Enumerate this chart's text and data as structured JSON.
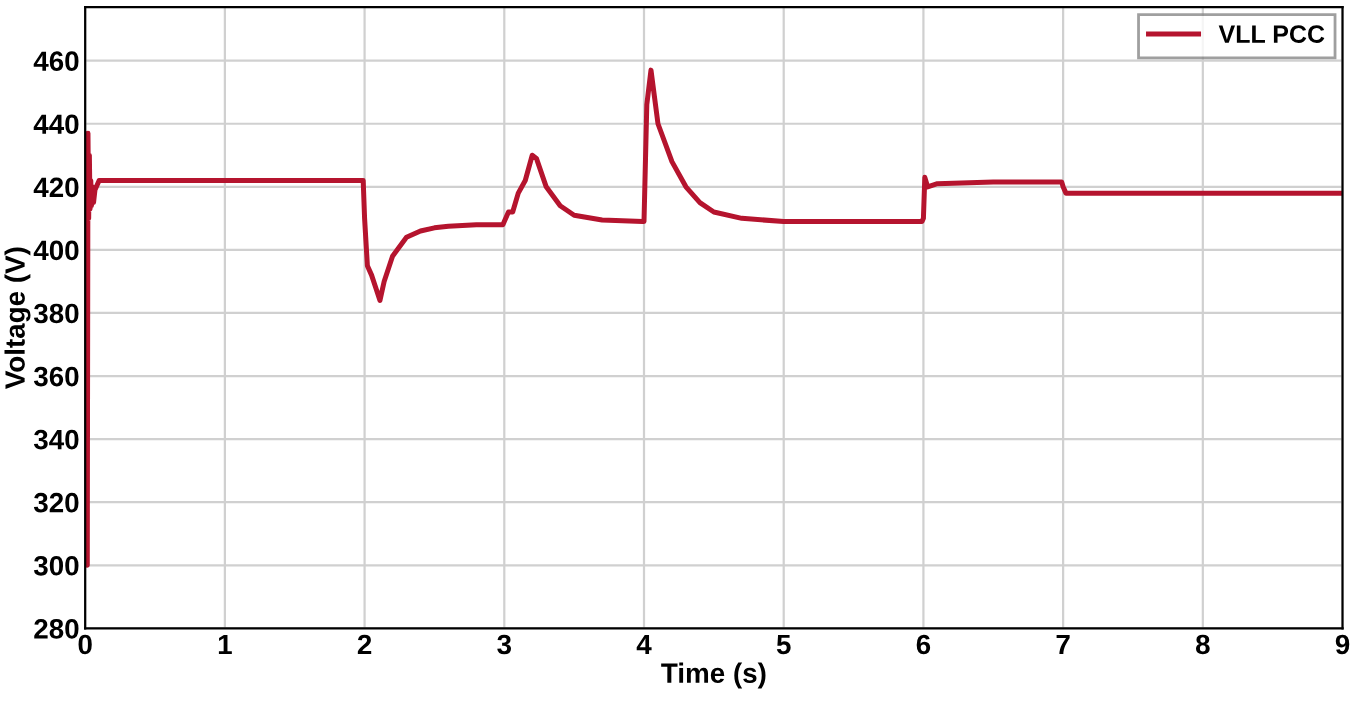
{
  "chart_data": {
    "type": "line",
    "xlabel": "Time (s)",
    "ylabel": "Voltage (V)",
    "xlim": [
      0,
      9
    ],
    "ylim": [
      280,
      477
    ],
    "xticks": [
      0,
      1,
      2,
      3,
      4,
      5,
      6,
      7,
      8,
      9
    ],
    "yticks": [
      280,
      300,
      320,
      340,
      360,
      380,
      400,
      420,
      440,
      460
    ],
    "grid": true,
    "legend": "top right",
    "marker": "none",
    "line_style": "solid",
    "series": [
      {
        "name": "VLL PCC",
        "color": "#b5142e",
        "x": [
          0,
          0.005,
          0.01,
          0.015,
          0.02,
          0.025,
          0.03,
          0.035,
          0.04,
          0.045,
          0.05,
          0.06,
          0.07,
          0.08,
          0.1,
          0.15,
          0.5,
          1.0,
          1.5,
          1.99,
          2.0,
          2.02,
          2.05,
          2.08,
          2.11,
          2.14,
          2.2,
          2.3,
          2.4,
          2.5,
          2.6,
          2.8,
          2.99,
          3.0,
          3.03,
          3.06,
          3.1,
          3.15,
          3.2,
          3.23,
          3.3,
          3.4,
          3.5,
          3.7,
          3.99,
          4.0,
          4.02,
          4.05,
          4.1,
          4.2,
          4.3,
          4.4,
          4.5,
          4.7,
          5.0,
          5.5,
          5.99,
          6.0,
          6.01,
          6.03,
          6.1,
          6.5,
          6.99,
          7.0,
          7.02,
          7.1,
          8.0,
          9.0
        ],
        "values": [
          420,
          436,
          433,
          300,
          437,
          410,
          430,
          413,
          422,
          414,
          420,
          415,
          419,
          420,
          422,
          422,
          422,
          422,
          422,
          422,
          410,
          395,
          392,
          388,
          384,
          390,
          398,
          404,
          406,
          407,
          407.5,
          408,
          408,
          409,
          412,
          412,
          418,
          422,
          430,
          429,
          420,
          414,
          411,
          409.5,
          409,
          409,
          446,
          457,
          440,
          428,
          420,
          415,
          412,
          410,
          409,
          409,
          409,
          410,
          423,
          420,
          421,
          421.5,
          421.5,
          420,
          418,
          418,
          418,
          418
        ]
      }
    ]
  }
}
